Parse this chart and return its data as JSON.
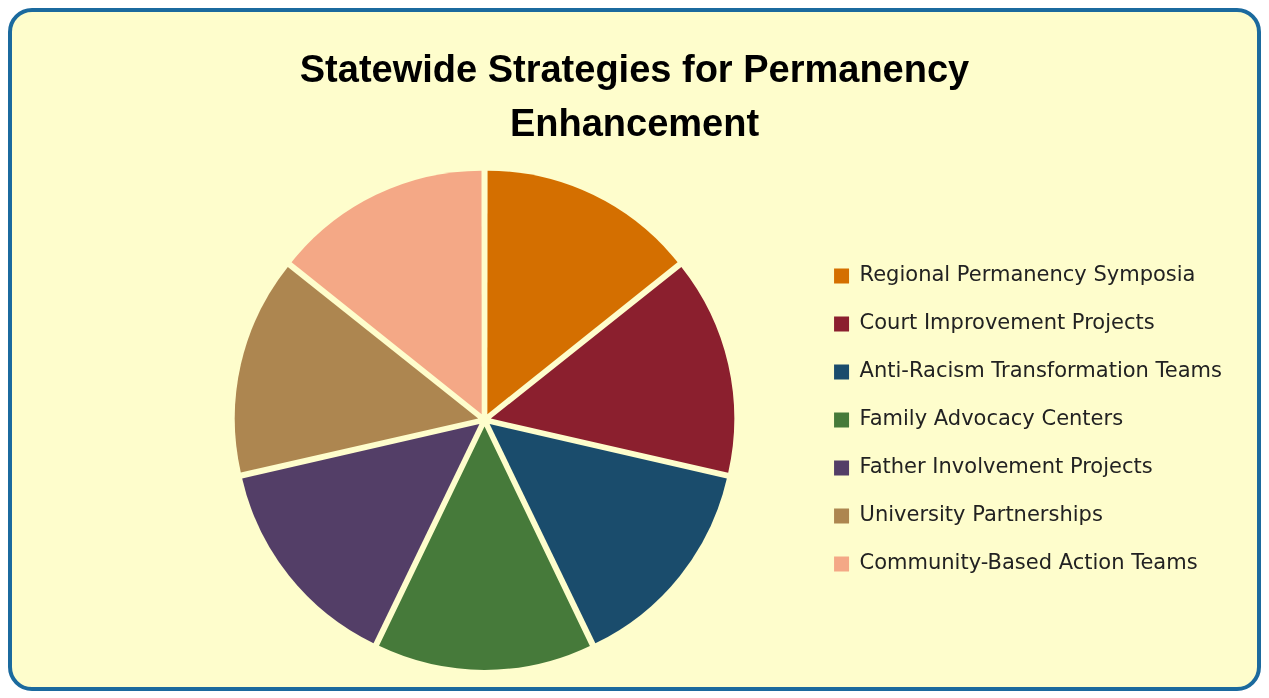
{
  "chart_data": {
    "type": "pie",
    "title": "Statewide Strategies for Permanency Enhancement",
    "categories": [
      "Regional Permanency Symposia",
      "Court Improvement Projects",
      "Anti-Racism Transformation Teams",
      "Family Advocacy Centers",
      "Father Involvement Projects",
      "University Partnerships",
      "Community-Based Action Teams"
    ],
    "values": [
      14.29,
      14.29,
      14.28,
      14.29,
      14.28,
      14.29,
      14.28
    ],
    "colors": [
      "#d46f00",
      "#8b1f2e",
      "#1a4c6c",
      "#467a3a",
      "#533e67",
      "#ad8650",
      "#f4a886"
    ],
    "legend": "right"
  }
}
